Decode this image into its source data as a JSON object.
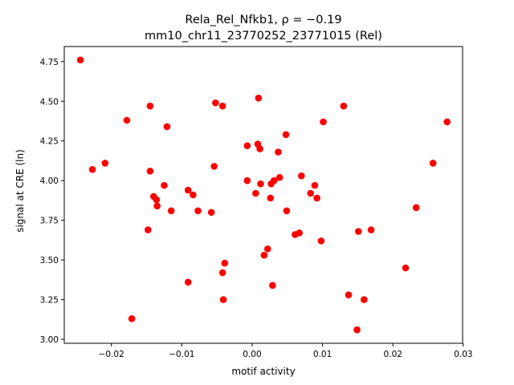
{
  "chart_data": {
    "type": "scatter",
    "title_line1": "Rela_Rel_Nfkb1, ρ = −0.19",
    "title_line2": "mm10_chr11_23770252_23771015 (Rel)",
    "xlabel": "motif activity",
    "ylabel": "signal at CRE (ln)",
    "xlim": [
      -0.0267,
      0.0299
    ],
    "ylim": [
      2.975,
      4.845
    ],
    "x_ticks": [
      -0.02,
      -0.01,
      0.0,
      0.01,
      0.02,
      0.03
    ],
    "x_tick_labels": [
      "−0.02",
      "−0.01",
      "0.00",
      "0.01",
      "0.02",
      "0.03"
    ],
    "y_ticks": [
      3.0,
      3.25,
      3.5,
      3.75,
      4.0,
      4.25,
      4.5,
      4.75
    ],
    "y_tick_labels": [
      "3.00",
      "3.25",
      "3.50",
      "3.75",
      "4.00",
      "4.25",
      "4.50",
      "4.75"
    ],
    "grid": false,
    "legend": "none",
    "marker_color": "#ff0000",
    "points": [
      {
        "x": -0.0244,
        "y": 4.76
      },
      {
        "x": -0.0227,
        "y": 4.07
      },
      {
        "x": -0.0209,
        "y": 4.11
      },
      {
        "x": -0.0178,
        "y": 4.38
      },
      {
        "x": -0.0171,
        "y": 3.13
      },
      {
        "x": -0.0148,
        "y": 3.69
      },
      {
        "x": -0.0145,
        "y": 4.47
      },
      {
        "x": -0.0145,
        "y": 4.06
      },
      {
        "x": -0.014,
        "y": 3.9
      },
      {
        "x": -0.0136,
        "y": 3.88
      },
      {
        "x": -0.0135,
        "y": 3.84
      },
      {
        "x": -0.0125,
        "y": 3.97
      },
      {
        "x": -0.0121,
        "y": 4.34
      },
      {
        "x": -0.0115,
        "y": 3.81
      },
      {
        "x": -0.0091,
        "y": 3.94
      },
      {
        "x": -0.0091,
        "y": 3.36
      },
      {
        "x": -0.0084,
        "y": 3.91
      },
      {
        "x": -0.0077,
        "y": 3.81
      },
      {
        "x": -0.0058,
        "y": 3.8
      },
      {
        "x": -0.0054,
        "y": 4.09
      },
      {
        "x": -0.0052,
        "y": 4.49
      },
      {
        "x": -0.0042,
        "y": 4.47
      },
      {
        "x": -0.0042,
        "y": 3.42
      },
      {
        "x": -0.0041,
        "y": 3.25
      },
      {
        "x": -0.0039,
        "y": 3.48
      },
      {
        "x": -0.0007,
        "y": 4.22
      },
      {
        "x": -0.0007,
        "y": 4.0
      },
      {
        "x": 0.0005,
        "y": 3.92
      },
      {
        "x": 0.0008,
        "y": 4.23
      },
      {
        "x": 0.0009,
        "y": 4.52
      },
      {
        "x": 0.0011,
        "y": 4.2
      },
      {
        "x": 0.0012,
        "y": 3.98
      },
      {
        "x": 0.0017,
        "y": 3.53
      },
      {
        "x": 0.0022,
        "y": 3.57
      },
      {
        "x": 0.0026,
        "y": 3.89
      },
      {
        "x": 0.0027,
        "y": 3.98
      },
      {
        "x": 0.0029,
        "y": 3.34
      },
      {
        "x": 0.0031,
        "y": 4.0
      },
      {
        "x": 0.0037,
        "y": 4.18
      },
      {
        "x": 0.0039,
        "y": 4.02
      },
      {
        "x": 0.0048,
        "y": 4.29
      },
      {
        "x": 0.0049,
        "y": 3.81
      },
      {
        "x": 0.0061,
        "y": 3.66
      },
      {
        "x": 0.0067,
        "y": 3.67
      },
      {
        "x": 0.007,
        "y": 4.03
      },
      {
        "x": 0.0083,
        "y": 3.92
      },
      {
        "x": 0.0089,
        "y": 3.97
      },
      {
        "x": 0.0092,
        "y": 3.89
      },
      {
        "x": 0.0098,
        "y": 3.62
      },
      {
        "x": 0.0101,
        "y": 4.37
      },
      {
        "x": 0.013,
        "y": 4.47
      },
      {
        "x": 0.0137,
        "y": 3.28
      },
      {
        "x": 0.0149,
        "y": 3.06
      },
      {
        "x": 0.0151,
        "y": 3.68
      },
      {
        "x": 0.0159,
        "y": 3.25
      },
      {
        "x": 0.0169,
        "y": 3.69
      },
      {
        "x": 0.0218,
        "y": 3.45
      },
      {
        "x": 0.0233,
        "y": 3.83
      },
      {
        "x": 0.0257,
        "y": 4.11
      },
      {
        "x": 0.0277,
        "y": 4.37
      }
    ]
  }
}
